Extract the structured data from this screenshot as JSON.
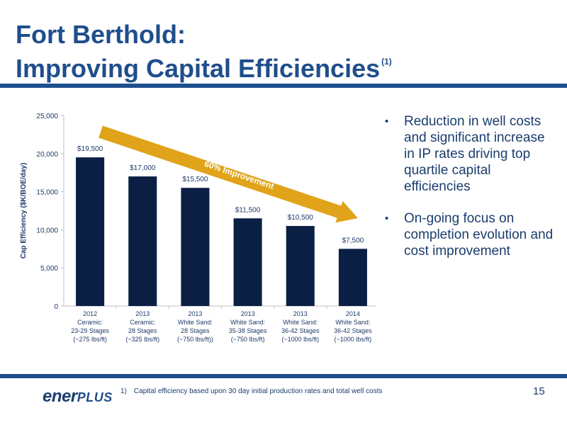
{
  "slide": {
    "title_line1": "Fort Berthold:",
    "title_line2": "Improving Capital Efficiencies",
    "title_footnote_marker": "(1)",
    "bullets": [
      "Reduction in well costs and significant increase in IP rates driving top quartile capital efficiencies",
      "On-going focus on completion evolution and cost improvement"
    ],
    "footnote_number": "1)",
    "footnote_text": "Capital efficiency based upon 30 day initial production rates and total well costs",
    "page_number": "15",
    "logo_part1": "ener",
    "logo_part2": "PLUS"
  },
  "colors": {
    "bar": "#0b1f45",
    "arrow": "#e0a319",
    "title": "#1f4e8c",
    "rule": "#1f4e8c",
    "axis_text": "#1f3a68",
    "grid": "#d9d9d9"
  },
  "chart_data": {
    "type": "bar",
    "ylabel": "Cap Efficiency ($K/BOE/day)",
    "ylim": [
      0,
      25000
    ],
    "yticks": [
      {
        "value": 0,
        "label": "0"
      },
      {
        "value": 5000,
        "label": "5,000"
      },
      {
        "value": 10000,
        "label": "10,000"
      },
      {
        "value": 15000,
        "label": "15,000"
      },
      {
        "value": 20000,
        "label": "20,000"
      },
      {
        "value": 25000,
        "label": "25,000"
      }
    ],
    "categories": [
      [
        "2012",
        "Ceramic:",
        "23-29 Stages",
        "(~275 lbs/ft)"
      ],
      [
        "2013",
        "Ceramic:",
        "28 Stages",
        "(~325 lbs/ft)"
      ],
      [
        "2013",
        "White Sand:",
        "28 Stages",
        "(~750 lbs/ft))"
      ],
      [
        "2013",
        "White Sand:",
        "35-38 Stages",
        "(~750 lbs/ft)"
      ],
      [
        "2013",
        "White Sand:",
        "36-42 Stages",
        "(~1000 lbs/ft)"
      ],
      [
        "2014",
        "White Sand:",
        "36-42 Stages",
        "(~1000 lbs/ft)"
      ]
    ],
    "values": [
      19500,
      17000,
      15500,
      11500,
      10500,
      7500
    ],
    "data_labels": [
      "$19,500",
      "$17,000",
      "$15,500",
      "$11,500",
      "$10,500",
      "$7,500"
    ],
    "annotation": "60% Improvement",
    "grid": false
  }
}
